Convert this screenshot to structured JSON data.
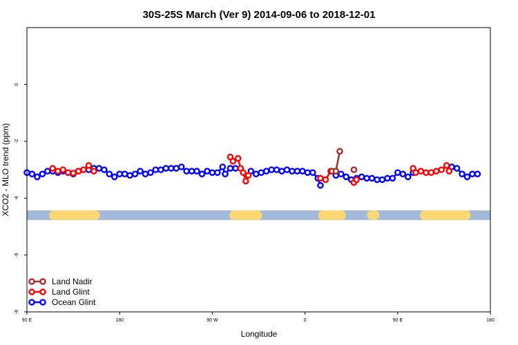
{
  "chart_data": {
    "type": "line",
    "title": "30S-25S March (Ver 9)   2014-09-06 to 2018-12-01",
    "xlabel": "Longitude",
    "ylabel": "XCO2 - MLO trend (ppm)",
    "xlim": [
      -90,
      270
    ],
    "ylim": [
      -8,
      2
    ],
    "x_ticks": [
      {
        "value": -90,
        "label": "90 E"
      },
      {
        "value": -18,
        "label": "180"
      },
      {
        "value": 54,
        "label": "90 W"
      },
      {
        "value": 126,
        "label": "0"
      },
      {
        "value": 198,
        "label": "90 E"
      },
      {
        "value": 270,
        "label": "180"
      }
    ],
    "y_ticks": [
      {
        "value": 0,
        "label": "0"
      },
      {
        "value": -2,
        "label": "-2"
      },
      {
        "value": -4,
        "label": "-4"
      },
      {
        "value": -6,
        "label": "-6"
      },
      {
        "value": -8,
        "label": "-8"
      }
    ],
    "band": {
      "y": -4.6,
      "ocean_color": "#a3b9d9",
      "land_color": "#fcd875",
      "land_segments": [
        [
          -69,
          -37
        ],
        [
          71,
          89
        ],
        [
          140,
          154
        ],
        [
          178,
          180
        ],
        [
          219,
          251
        ]
      ]
    },
    "series": [
      {
        "name": "Land Nadir",
        "color": "#a52a2a",
        "segments": [
          [
            [
              147,
              -3.05
            ],
            [
              150,
              -3.05
            ],
            [
              153,
              -2.35
            ]
          ],
          [
            [
              164,
              -3.0
            ]
          ]
        ]
      },
      {
        "name": "Land Glint",
        "color": "#ff0000",
        "segments": [
          [
            [
              -70,
              -2.95
            ],
            [
              -66,
              -3.05
            ],
            [
              -62,
              -3.0
            ],
            [
              -58,
              -3.1
            ],
            [
              -54,
              -3.12
            ],
            [
              -50,
              -3.05
            ],
            [
              -46,
              -3.0
            ],
            [
              -42,
              -2.85
            ],
            [
              -38,
              -3.05
            ]
          ],
          [
            [
              68,
              -2.55
            ],
            [
              70,
              -2.7
            ],
            [
              74,
              -2.6
            ],
            [
              76,
              -2.95
            ],
            [
              78,
              -3.1
            ],
            [
              80,
              -3.4
            ],
            [
              82,
              -3.2
            ]
          ],
          [
            [
              138,
              -3.3
            ],
            [
              142,
              -3.35
            ],
            [
              146,
              -3.05
            ],
            [
              150,
              -3.05
            ]
          ],
          [
            [
              164,
              -3.45
            ],
            [
              166,
              -3.35
            ]
          ],
          [
            [
              210,
              -2.95
            ],
            [
              212,
              -3.1
            ],
            [
              216,
              -3.05
            ],
            [
              220,
              -3.1
            ],
            [
              224,
              -3.1
            ],
            [
              228,
              -3.05
            ],
            [
              232,
              -3.0
            ],
            [
              236,
              -2.85
            ],
            [
              238,
              -3.05
            ]
          ]
        ]
      },
      {
        "name": "Ocean Glint",
        "color": "#0000ff",
        "segments": [
          [
            [
              -90,
              -3.1
            ],
            [
              -86,
              -3.15
            ],
            [
              -82,
              -3.25
            ],
            [
              -78,
              -3.15
            ],
            [
              -74,
              -3.05
            ],
            [
              -70,
              -3.05
            ],
            [
              -66,
              -3.1
            ],
            [
              -62,
              -3.05
            ],
            [
              -58,
              -3.1
            ],
            [
              -54,
              -3.15
            ],
            [
              -50,
              -3.05
            ],
            [
              -46,
              -3.0
            ],
            [
              -42,
              -3.0
            ],
            [
              -38,
              -2.95
            ],
            [
              -34,
              -2.95
            ],
            [
              -30,
              -3.0
            ],
            [
              -26,
              -3.15
            ],
            [
              -22,
              -3.25
            ],
            [
              -18,
              -3.15
            ],
            [
              -14,
              -3.15
            ],
            [
              -10,
              -3.2
            ],
            [
              -6,
              -3.15
            ],
            [
              -2,
              -3.05
            ],
            [
              2,
              -3.15
            ],
            [
              6,
              -3.1
            ],
            [
              10,
              -3.0
            ],
            [
              14,
              -3.0
            ],
            [
              18,
              -2.95
            ],
            [
              22,
              -2.95
            ],
            [
              26,
              -2.95
            ],
            [
              30,
              -2.9
            ],
            [
              34,
              -3.05
            ],
            [
              38,
              -3.05
            ],
            [
              42,
              -3.05
            ],
            [
              46,
              -3.15
            ],
            [
              50,
              -3.05
            ],
            [
              54,
              -3.1
            ],
            [
              58,
              -3.1
            ],
            [
              62,
              -2.9
            ],
            [
              64,
              -3.15
            ],
            [
              68,
              -2.95
            ],
            [
              72,
              -2.95
            ]
          ],
          [
            [
              84,
              -3.05
            ],
            [
              88,
              -3.15
            ],
            [
              92,
              -3.1
            ],
            [
              96,
              -3.05
            ],
            [
              100,
              -3.0
            ],
            [
              104,
              -3.0
            ],
            [
              108,
              -3.05
            ],
            [
              112,
              -3.0
            ],
            [
              116,
              -3.05
            ],
            [
              120,
              -3.05
            ],
            [
              124,
              -3.05
            ],
            [
              128,
              -3.1
            ],
            [
              132,
              -3.1
            ],
            [
              136,
              -3.3
            ],
            [
              138,
              -3.55
            ]
          ],
          [
            [
              150,
              -3.2
            ],
            [
              154,
              -3.15
            ],
            [
              158,
              -3.25
            ],
            [
              162,
              -3.35
            ],
            [
              166,
              -3.3
            ],
            [
              170,
              -3.25
            ],
            [
              174,
              -3.3
            ],
            [
              178,
              -3.3
            ],
            [
              182,
              -3.35
            ],
            [
              186,
              -3.35
            ],
            [
              190,
              -3.3
            ],
            [
              194,
              -3.3
            ],
            [
              198,
              -3.1
            ],
            [
              202,
              -3.15
            ],
            [
              206,
              -3.25
            ],
            [
              210,
              -3.1
            ]
          ],
          [
            [
              240,
              -2.9
            ],
            [
              244,
              -2.95
            ],
            [
              248,
              -3.15
            ],
            [
              252,
              -3.25
            ],
            [
              256,
              -3.15
            ],
            [
              260,
              -3.15
            ]
          ]
        ]
      }
    ],
    "legend_position": "bottom-left"
  }
}
